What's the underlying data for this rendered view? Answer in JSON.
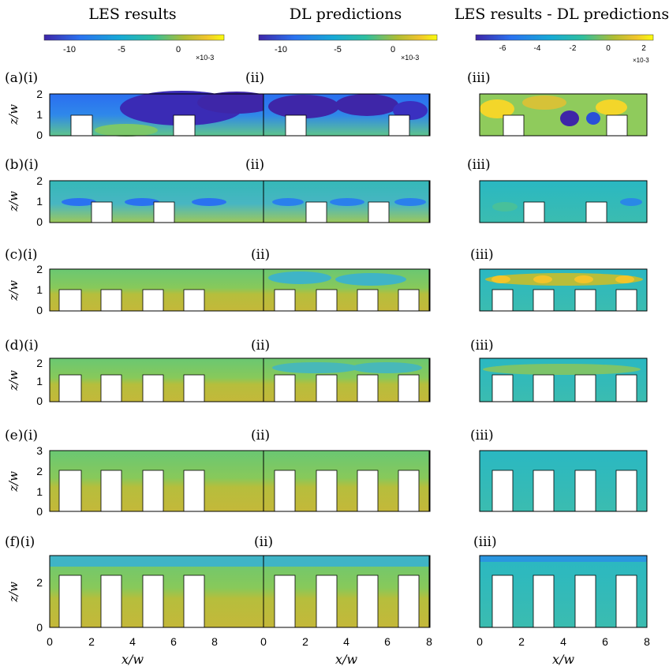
{
  "columns": [
    {
      "title": "LES results",
      "colorbar_ticks": [
        "-10",
        "-5",
        "0"
      ],
      "colorbar_exp": "×10-3"
    },
    {
      "title": "DL predictions",
      "colorbar_ticks": [
        "-10",
        "-5",
        "0"
      ],
      "colorbar_exp": "×10-3"
    },
    {
      "title": "LES results - DL predictions",
      "colorbar_ticks": [
        "-6",
        "-4",
        "-2",
        "0",
        "2"
      ],
      "colorbar_exp": "×10-3"
    }
  ],
  "rows": [
    {
      "labels": [
        "(a)(i)",
        "(ii)",
        "(iii)"
      ],
      "yticks": [
        "2",
        "1",
        "0"
      ]
    },
    {
      "labels": [
        "(b)(i)",
        "(ii)",
        "(iii)"
      ],
      "yticks": [
        "2",
        "1",
        "0"
      ]
    },
    {
      "labels": [
        "(c)(i)",
        "(ii)",
        "(iii)"
      ],
      "yticks": [
        "2",
        "1",
        "0"
      ]
    },
    {
      "labels": [
        "(d)(i)",
        "(ii)",
        "(iii)"
      ],
      "yticks": [
        "2",
        "1",
        "0"
      ]
    },
    {
      "labels": [
        "(e)(i)",
        "(ii)",
        "(iii)"
      ],
      "yticks": [
        "3",
        "2",
        "1",
        "0"
      ]
    },
    {
      "labels": [
        "(f)(i)",
        "(ii)",
        "(iii)"
      ],
      "yticks": [
        "2",
        "0"
      ]
    }
  ],
  "axes": {
    "ylabel": "z/w",
    "xlabel": "x/w",
    "xticks": [
      "0",
      "2",
      "4",
      "6",
      "8"
    ]
  },
  "colors": {
    "cmap_dark": "#3e26a8",
    "cmap_blue": "#2a72f0",
    "cmap_teal": "#1fb4c2",
    "cmap_green": "#7ccc6a",
    "cmap_olive": "#c9b83a",
    "cmap_yellow": "#f9fb0e"
  }
}
